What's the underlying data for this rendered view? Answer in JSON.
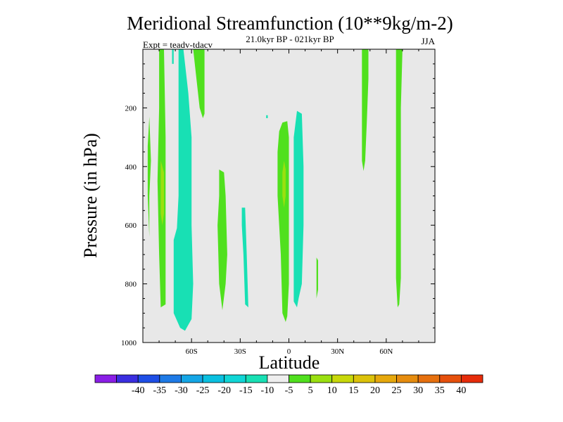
{
  "chart_data": {
    "type": "contour",
    "title": "Meridional Streamfunction (10**9kg/m-2)",
    "subtitle": "21.0kyr BP - 021kyr BP",
    "left_label": "Expt = teadv-tdacv",
    "right_label": "JJA",
    "xlabel": "Latitude",
    "ylabel": "Pressure (in hPa)",
    "xlim": [
      -90,
      90
    ],
    "ylim": [
      1000,
      0
    ],
    "y_reversed": true,
    "xticks": [
      {
        "value": -60,
        "label": "60S"
      },
      {
        "value": -30,
        "label": "30S"
      },
      {
        "value": 0,
        "label": "0"
      },
      {
        "value": 30,
        "label": "30N"
      },
      {
        "value": 60,
        "label": "60N"
      }
    ],
    "yticks": [
      {
        "value": 200,
        "label": "200"
      },
      {
        "value": 400,
        "label": "400"
      },
      {
        "value": 600,
        "label": "600"
      },
      {
        "value": 800,
        "label": "800"
      },
      {
        "value": 1000,
        "label": "1000"
      }
    ],
    "background_color": "#e8e8e8",
    "colorbar": {
      "colors": [
        "#8a1ee6",
        "#3a2ee0",
        "#1e4ee6",
        "#1e7ae6",
        "#14a6e6",
        "#0ac0e0",
        "#10d6d6",
        "#18e0b4",
        "#eeeeee",
        "#50e01e",
        "#9ae010",
        "#c8d80a",
        "#dcc20a",
        "#e6a80c",
        "#e68c0e",
        "#e6700e",
        "#e6500c",
        "#e62c0a"
      ],
      "labels": [
        "-40",
        "-35",
        "-30",
        "-25",
        "-20",
        "-15",
        "-10",
        "-5",
        "5",
        "10",
        "15",
        "20",
        "25",
        "30",
        "35",
        "40"
      ]
    },
    "regions": [
      {
        "level": 5,
        "color": "#50e01e",
        "points": [
          [
            -86,
            230
          ],
          [
            -85,
            380
          ],
          [
            -86,
            500
          ],
          [
            -86,
            640
          ],
          [
            -87,
            500
          ],
          [
            -87,
            330
          ]
        ]
      },
      {
        "level": 5,
        "color": "#50e01e",
        "points": [
          [
            -80,
            0
          ],
          [
            -77,
            0
          ],
          [
            -76,
            300
          ],
          [
            -76,
            550
          ],
          [
            -76,
            870
          ],
          [
            -79,
            880
          ],
          [
            -80,
            700
          ],
          [
            -81,
            450
          ],
          [
            -80,
            200
          ]
        ]
      },
      {
        "level": 10,
        "color": "#9ae010",
        "points": [
          [
            -79,
            380
          ],
          [
            -77,
            420
          ],
          [
            -77,
            560
          ],
          [
            -78,
            600
          ],
          [
            -79,
            560
          ],
          [
            -79,
            450
          ]
        ]
      },
      {
        "level": -5,
        "color": "#18e0b4",
        "points": [
          [
            -72,
            0
          ],
          [
            -71,
            0
          ],
          [
            -71,
            50
          ],
          [
            -72,
            50
          ]
        ]
      },
      {
        "level": -5,
        "color": "#18e0b4",
        "points": [
          [
            -68,
            0
          ],
          [
            -65,
            0
          ],
          [
            -62,
            150
          ],
          [
            -60,
            300
          ],
          [
            -60,
            600
          ],
          [
            -59,
            800
          ],
          [
            -60,
            920
          ],
          [
            -64,
            960
          ],
          [
            -67,
            950
          ],
          [
            -71,
            900
          ],
          [
            -71,
            650
          ],
          [
            -69,
            610
          ],
          [
            -68,
            500
          ],
          [
            -68,
            300
          ],
          [
            -68,
            150
          ]
        ]
      },
      {
        "level": 5,
        "color": "#50e01e",
        "points": [
          [
            -59,
            0
          ],
          [
            -52,
            0
          ],
          [
            -52,
            150
          ],
          [
            -52,
            220
          ],
          [
            -53,
            235
          ],
          [
            -55,
            200
          ],
          [
            -57,
            100
          ]
        ]
      },
      {
        "level": 5,
        "color": "#50e01e",
        "points": [
          [
            -43,
            410
          ],
          [
            -40,
            420
          ],
          [
            -39,
            500
          ],
          [
            -38,
            700
          ],
          [
            -39,
            800
          ],
          [
            -41,
            890
          ],
          [
            -43,
            800
          ],
          [
            -44,
            600
          ],
          [
            -43,
            500
          ]
        ]
      },
      {
        "level": -5,
        "color": "#18e0b4",
        "points": [
          [
            -29,
            540
          ],
          [
            -27,
            540
          ],
          [
            -26,
            700
          ],
          [
            -25,
            880
          ],
          [
            -27,
            870
          ],
          [
            -28,
            700
          ],
          [
            -29,
            600
          ]
        ]
      },
      {
        "level": -5,
        "color": "#18e0b4",
        "points": [
          [
            -14,
            225
          ],
          [
            -13,
            225
          ],
          [
            -13,
            235
          ],
          [
            -14,
            235
          ]
        ]
      },
      {
        "level": 5,
        "color": "#50e01e",
        "points": [
          [
            -4,
            250
          ],
          [
            -1,
            245
          ],
          [
            0,
            300
          ],
          [
            0,
            600
          ],
          [
            0,
            800
          ],
          [
            -1,
            910
          ],
          [
            -2,
            930
          ],
          [
            -4,
            900
          ],
          [
            -5,
            700
          ],
          [
            -7,
            500
          ],
          [
            -7,
            350
          ],
          [
            -6,
            280
          ]
        ]
      },
      {
        "level": 10,
        "color": "#9ae010",
        "points": [
          [
            -3,
            380
          ],
          [
            -2,
            410
          ],
          [
            -2,
            500
          ],
          [
            -3,
            540
          ],
          [
            -4,
            500
          ],
          [
            -4,
            420
          ]
        ]
      },
      {
        "level": -5,
        "color": "#18e0b4",
        "points": [
          [
            5,
            210
          ],
          [
            8,
            220
          ],
          [
            9,
            400
          ],
          [
            9,
            600
          ],
          [
            8,
            800
          ],
          [
            6,
            850
          ],
          [
            5,
            880
          ],
          [
            3,
            860
          ],
          [
            3,
            700
          ],
          [
            3,
            500
          ],
          [
            3,
            300
          ]
        ]
      },
      {
        "level": 5,
        "color": "#50e01e",
        "points": [
          [
            17,
            710
          ],
          [
            18,
            720
          ],
          [
            18,
            820
          ],
          [
            17,
            850
          ]
        ]
      },
      {
        "level": 5,
        "color": "#50e01e",
        "points": [
          [
            45,
            0
          ],
          [
            49,
            0
          ],
          [
            49,
            100
          ],
          [
            48,
            250
          ],
          [
            47,
            380
          ],
          [
            46,
            415
          ],
          [
            45,
            380
          ],
          [
            45,
            200
          ]
        ]
      },
      {
        "level": 5,
        "color": "#50e01e",
        "points": [
          [
            66,
            0
          ],
          [
            70,
            0
          ],
          [
            69,
            200
          ],
          [
            69,
            500
          ],
          [
            69,
            780
          ],
          [
            68,
            870
          ],
          [
            67,
            880
          ],
          [
            66,
            780
          ],
          [
            66,
            500
          ],
          [
            66,
            200
          ]
        ]
      }
    ]
  }
}
